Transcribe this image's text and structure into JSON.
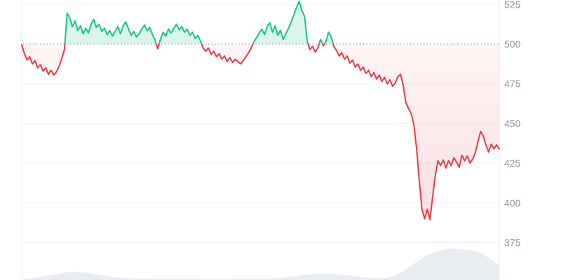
{
  "colors": {
    "up": "#16c784",
    "down": "#ea3943",
    "up_fill_opacity": 0.16,
    "down_fill_top_opacity": 0.05,
    "down_fill_bottom_opacity": 0.17,
    "grid": "#eff2f5",
    "axis_border": "#e9ecf0",
    "baseline_dots": "#9aa4b2",
    "label": "#8b95a5",
    "navigator_fill": "#e9edf2",
    "background": "#ffffff"
  },
  "chart_data": {
    "type": "area",
    "title": "",
    "xlabel": "",
    "ylabel": "",
    "threshold": 500,
    "y_ticks": [
      525,
      500,
      475,
      450,
      425,
      400,
      375
    ],
    "ylim": [
      351,
      528
    ],
    "grid": "horizontal",
    "legend": "none",
    "baseline_style": "dotted",
    "up_segments_note": "line is green above threshold 500, red below",
    "prices": [
      499.5,
      494,
      490,
      492,
      487.5,
      489.5,
      485,
      487,
      483,
      485,
      481,
      483.5,
      480.5,
      482.5,
      486,
      491,
      496.5,
      519.5,
      516.5,
      511,
      514.5,
      508.5,
      511.5,
      506.5,
      510,
      507,
      512.5,
      515.5,
      510.5,
      512.5,
      508,
      510,
      506,
      508.5,
      505,
      508,
      511,
      506.5,
      511.5,
      514,
      509.5,
      505.5,
      508,
      504.5,
      506.5,
      509.5,
      512,
      508.5,
      510.5,
      506,
      502.5,
      497,
      503,
      507.5,
      505,
      509.5,
      507,
      510,
      512.5,
      509,
      511,
      507.5,
      509.5,
      505.5,
      507.5,
      503.5,
      505.5,
      502,
      497.5,
      495.5,
      497.5,
      493.5,
      495.5,
      492,
      494,
      490.5,
      492.5,
      489,
      491.5,
      488.5,
      490.5,
      489,
      487.5,
      489.5,
      492,
      494.5,
      497.5,
      501.5,
      504,
      507,
      509.5,
      506,
      511,
      513.5,
      507.5,
      511.5,
      505.5,
      508.5,
      503,
      506.5,
      510,
      514,
      518.5,
      523,
      527,
      521,
      517.5,
      502,
      496.5,
      498.5,
      495,
      497.5,
      503,
      499,
      501.5,
      507.5,
      504.5,
      498.5,
      496,
      492.5,
      494.5,
      490.5,
      492.5,
      488,
      490,
      485.5,
      487.5,
      483.5,
      485.5,
      481.5,
      483.5,
      479.5,
      482,
      478,
      480.5,
      476.5,
      479,
      475,
      477.5,
      473.5,
      475.5,
      479.5,
      481,
      474,
      463,
      459.5,
      456,
      449,
      434,
      414,
      396,
      390,
      396,
      389.5,
      403.5,
      417,
      426.5,
      423.5,
      427,
      422,
      426.5,
      423.5,
      428.5,
      425.5,
      422.5,
      430,
      426.5,
      429.5,
      425,
      427.5,
      431.5,
      438.5,
      445,
      442,
      436.5,
      432,
      437,
      434,
      436.5,
      434
    ],
    "navigator_profile": [
      [
        31,
        399.5
      ],
      [
        40,
        398
      ],
      [
        52,
        396.5
      ],
      [
        64,
        394.5
      ],
      [
        76,
        392.5
      ],
      [
        88,
        390.5
      ],
      [
        97,
        389
      ],
      [
        105,
        388
      ],
      [
        112,
        388.5
      ],
      [
        122,
        389.5
      ],
      [
        132,
        391
      ],
      [
        144,
        393
      ],
      [
        156,
        395
      ],
      [
        168,
        396.5
      ],
      [
        180,
        397.5
      ],
      [
        195,
        398
      ],
      [
        215,
        398.3
      ],
      [
        245,
        398.6
      ],
      [
        285,
        398.7
      ],
      [
        325,
        398.7
      ],
      [
        365,
        398.6
      ],
      [
        392,
        398
      ],
      [
        406,
        396.5
      ],
      [
        420,
        394.5
      ],
      [
        434,
        392.8
      ],
      [
        448,
        391.8
      ],
      [
        462,
        391.5
      ],
      [
        476,
        391.8
      ],
      [
        490,
        392.5
      ],
      [
        504,
        394
      ],
      [
        518,
        395.8
      ],
      [
        532,
        397.2
      ],
      [
        543,
        397.6
      ],
      [
        552,
        396.6
      ],
      [
        562,
        394
      ],
      [
        572,
        389.5
      ],
      [
        582,
        382.5
      ],
      [
        592,
        375.5
      ],
      [
        602,
        369
      ],
      [
        612,
        363.5
      ],
      [
        622,
        359.5
      ],
      [
        632,
        357
      ],
      [
        642,
        355.5
      ],
      [
        652,
        355.5
      ],
      [
        660,
        356.5
      ],
      [
        668,
        357.2
      ],
      [
        676,
        358.2
      ],
      [
        684,
        360.5
      ],
      [
        690,
        364
      ],
      [
        696,
        368
      ],
      [
        701,
        370
      ],
      [
        705,
        374.5
      ],
      [
        709,
        377
      ],
      [
        712,
        377.5
      ]
    ]
  }
}
